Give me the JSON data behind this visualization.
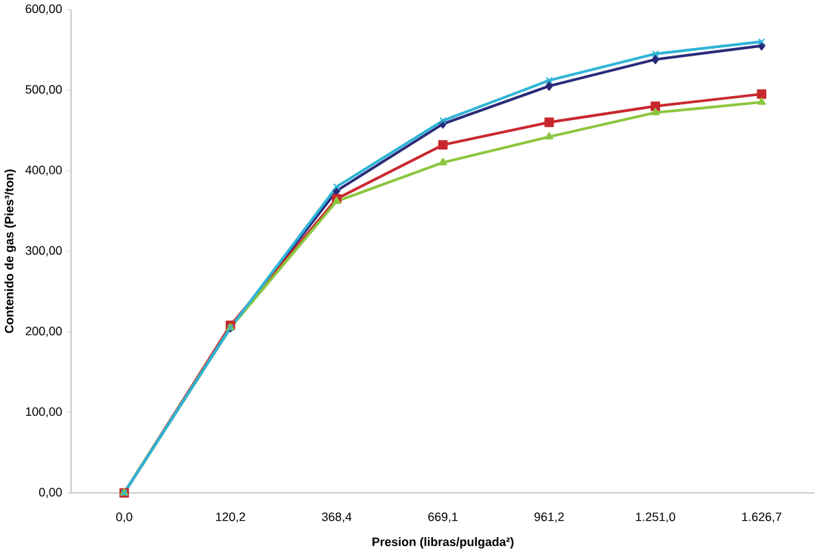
{
  "chart_data": {
    "type": "line",
    "xlabel": "Presion (libras/pulgada²)",
    "ylabel": "Contenido de gas (Pies³/ton)",
    "categories": [
      "0,0",
      "120,2",
      "368,4",
      "669,1",
      "961,2",
      "1.251,0",
      "1.626,7"
    ],
    "ylim": [
      0,
      600
    ],
    "yticks": [
      {
        "value": 0,
        "label": "0,00"
      },
      {
        "value": 100,
        "label": "100,00"
      },
      {
        "value": 200,
        "label": "200,00"
      },
      {
        "value": 300,
        "label": "300,00"
      },
      {
        "value": 400,
        "label": "400,00"
      },
      {
        "value": 500,
        "label": "500,00"
      },
      {
        "value": 600,
        "label": "600,00"
      }
    ],
    "series": [
      {
        "color": "#2a2a7a",
        "marker": "diamond",
        "values": [
          0,
          205,
          375,
          458,
          505,
          538,
          555
        ]
      },
      {
        "color": "#c8282d",
        "marker": "square",
        "values": [
          0,
          208,
          365,
          432,
          460,
          480,
          495
        ]
      },
      {
        "color": "#8cc63f",
        "marker": "triangle",
        "values": [
          0,
          205,
          362,
          410,
          442,
          472,
          485
        ]
      },
      {
        "color": "#2eb4d6",
        "marker": "cross",
        "values": [
          0,
          205,
          380,
          462,
          512,
          545,
          560
        ]
      }
    ]
  }
}
